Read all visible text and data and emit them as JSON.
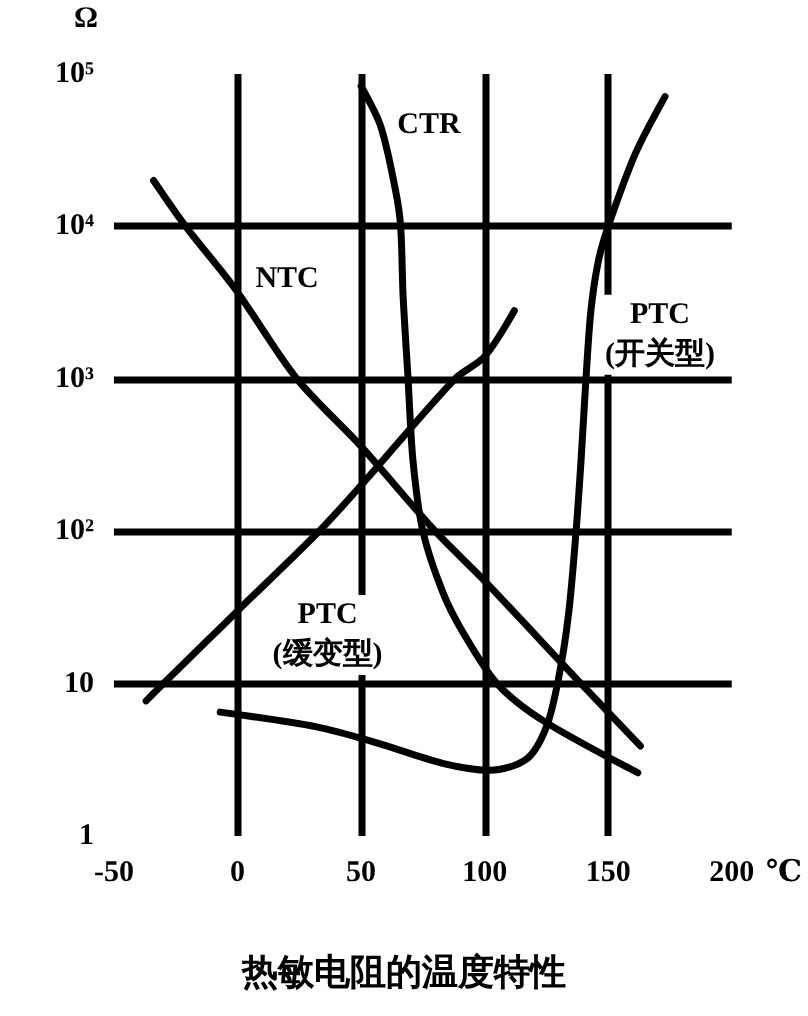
{
  "chart_data": {
    "type": "line",
    "title": "热敏电阻的温度特性",
    "xlabel": "℃",
    "ylabel": "Ω",
    "log": "y",
    "xlim": [
      -50,
      200
    ],
    "ylim": [
      1,
      100000
    ],
    "xticks": [
      -50,
      0,
      50,
      100,
      150,
      200
    ],
    "yticks": [
      1,
      10,
      {
        "value": 100,
        "label": "10²"
      },
      {
        "value": 1000,
        "label": "10³"
      },
      {
        "value": 10000,
        "label": "10⁴"
      },
      {
        "value": 100000,
        "label": "10⁵"
      }
    ],
    "grid": true,
    "legend": false,
    "marker": "none",
    "line_style": "solid",
    "series": [
      {
        "name": "NTC",
        "color": "#000000",
        "x": [
          -34,
          -21,
          -1,
          24,
          50,
          80,
          99,
          139,
          163
        ],
        "values": [
          20000,
          10000,
          3900,
          1000,
          360,
          100,
          49,
          10,
          3.9
        ]
      },
      {
        "name": "CTR",
        "color": "#000000",
        "x": [
          50,
          58,
          64,
          66,
          67,
          69,
          71,
          75,
          83,
          91,
          105,
          123,
          162
        ],
        "values": [
          83000,
          45000,
          17000,
          10000,
          3500,
          1000,
          290,
          100,
          40,
          22,
          10,
          5.8,
          2.6
        ]
      },
      {
        "name": "PTC\n(开关型)",
        "color": "#000000",
        "x": [
          -7,
          32,
          56,
          83,
          102,
          117,
          125,
          130,
          134,
          137,
          139,
          141,
          143,
          146,
          150,
          161,
          173
        ],
        "values": [
          6.5,
          5.2,
          4.1,
          3,
          2.7,
          3.2,
          5.2,
          11,
          29,
          100,
          290,
          1000,
          2800,
          5900,
          10000,
          30000,
          71000
        ]
      },
      {
        "name": "PTC\n(缓变型)",
        "color": "#000000",
        "x": [
          -37,
          -30,
          0,
          33,
          50,
          88,
          100,
          112
        ],
        "values": [
          7.7,
          10,
          30,
          100,
          200,
          1000,
          1400,
          2800
        ]
      }
    ]
  }
}
